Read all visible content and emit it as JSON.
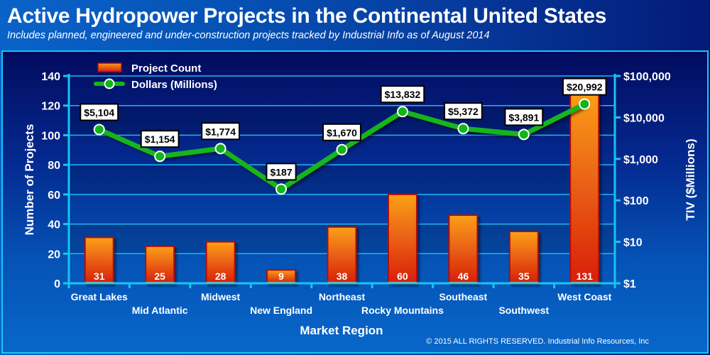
{
  "header": {
    "title": "Active Hydropower Projects in the Continental United States",
    "subtitle": "Includes planned, engineered and under-construction projects tracked by Industrial Info as of August 2014"
  },
  "footer": {
    "copyright": "© 2015 ALL RIGHTS RESERVED. Industrial Info Resources, Inc"
  },
  "colors": {
    "bar_top": "#fba017",
    "bar_bottom": "#d81e0e",
    "bar_border": "#b00c0c",
    "bar_base": "#f7b24a",
    "line": "#12b51a",
    "marker_fill": "#12b51a",
    "marker_stroke": "#ffffff",
    "axis": "#18c4f0",
    "grid": "#1fb8ee"
  },
  "chart_data": {
    "type": "bar+line",
    "title": "Active Hydropower Projects in the Continental United States",
    "subtitle": "Includes planned, engineered and under-construction projects tracked by Industrial Info as of August 2014",
    "xlabel": "Market Region",
    "ylabel": "Number of Projects",
    "y2label": "TIV ($Millions)",
    "categories": [
      "Great Lakes",
      "Mid Atlantic",
      "Midwest",
      "New England",
      "Northeast",
      "Rocky Mountains",
      "Southeast",
      "Southwest",
      "West Coast"
    ],
    "ylim": [
      0,
      140
    ],
    "yticks": [
      0,
      20,
      40,
      60,
      80,
      100,
      120,
      140
    ],
    "ytick_labels": [
      "0",
      "20",
      "40",
      "60",
      "80",
      "100",
      "120",
      "140"
    ],
    "y2scale": "log",
    "y2lim": [
      1,
      100000
    ],
    "y2ticks": [
      1,
      10,
      100,
      1000,
      10000,
      100000
    ],
    "y2tick_labels": [
      "$1",
      "$10",
      "$100",
      "$1,000",
      "$10,000",
      "$100,000"
    ],
    "grid": true,
    "legend_position": "top-left",
    "series": [
      {
        "name": "Project Count",
        "type": "bar",
        "axis": "left",
        "values": [
          31,
          25,
          28,
          9,
          38,
          60,
          46,
          35,
          131
        ],
        "labels": [
          "31",
          "25",
          "28",
          "9",
          "38",
          "60",
          "46",
          "35",
          "131"
        ]
      },
      {
        "name": "Dollars (Millions)",
        "type": "line",
        "axis": "right",
        "values": [
          5104,
          1154,
          1774,
          187,
          1670,
          13832,
          5372,
          3891,
          20992
        ],
        "labels": [
          "$5,104",
          "$1,154",
          "$1,774",
          "$187",
          "$1,670",
          "$13,832",
          "$5,372",
          "$3,891",
          "$20,992"
        ]
      }
    ]
  }
}
